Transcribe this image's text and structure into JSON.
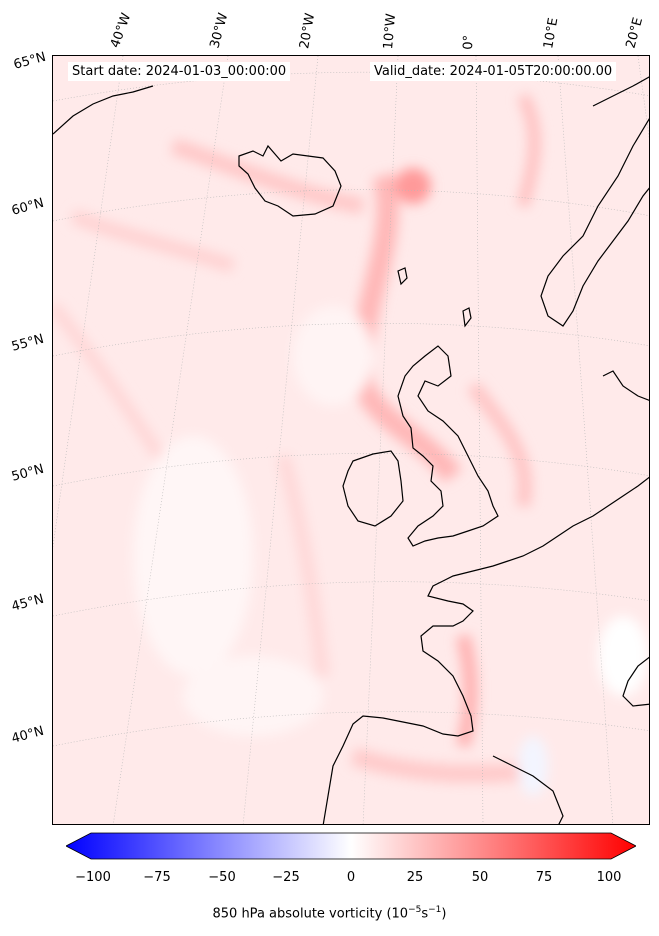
{
  "map": {
    "start_date": "Start date: 2024-01-03_00:00:00",
    "valid_date": "Valid_date: 2024-01-05T20:00:00.00",
    "longitude_labels": [
      "40°W",
      "30°W",
      "20°W",
      "10°W",
      "0°",
      "10°E",
      "20°E"
    ],
    "latitude_labels": [
      "65°N",
      "60°N",
      "55°N",
      "50°N",
      "45°N",
      "40°N"
    ]
  },
  "colorbar": {
    "label_prefix": "850 hPa absolute vorticity (10",
    "label_exp1": "−5",
    "label_mid": "s",
    "label_exp2": "−1",
    "label_suffix": ")",
    "ticks": [
      "−100",
      "−75",
      "−50",
      "−25",
      "0",
      "25",
      "50",
      "75",
      "100"
    ],
    "min": -100,
    "max": 100,
    "low_color": "#0000ff",
    "mid_color": "#ffffff",
    "high_color": "#ff0000"
  }
}
